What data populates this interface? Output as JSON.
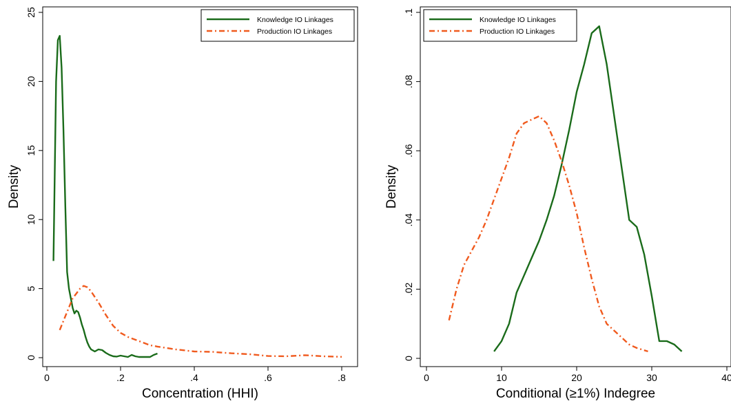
{
  "chart_data": [
    {
      "type": "line",
      "title": "",
      "xlabel": "Concentration (HHI)",
      "ylabel": "Density",
      "xlim": [
        0,
        0.82
      ],
      "ylim": [
        0,
        25
      ],
      "xticks": [
        0,
        0.2,
        0.4,
        0.6,
        0.8
      ],
      "xtick_labels": [
        "0",
        ".2",
        ".4",
        ".6",
        ".8"
      ],
      "yticks": [
        0,
        5,
        10,
        15,
        20,
        25
      ],
      "ytick_labels": [
        "0",
        "5",
        "10",
        "15",
        "20",
        "25"
      ],
      "legend_position": "top-right",
      "grid": false,
      "series": [
        {
          "name": "Knowledge IO Linkages",
          "color": "#1a6b1a",
          "dash": "solid",
          "x": [
            0.018,
            0.025,
            0.03,
            0.035,
            0.04,
            0.045,
            0.05,
            0.055,
            0.06,
            0.065,
            0.07,
            0.075,
            0.08,
            0.085,
            0.09,
            0.095,
            0.1,
            0.105,
            0.11,
            0.115,
            0.12,
            0.13,
            0.14,
            0.15,
            0.16,
            0.17,
            0.18,
            0.19,
            0.2,
            0.21,
            0.22,
            0.23,
            0.24,
            0.25,
            0.26,
            0.27,
            0.28,
            0.29,
            0.3
          ],
          "y": [
            7.0,
            20.0,
            23.0,
            23.3,
            21.0,
            16.5,
            11.0,
            6.2,
            5.0,
            4.3,
            3.6,
            3.2,
            3.4,
            3.3,
            2.9,
            2.4,
            2.0,
            1.5,
            1.1,
            0.8,
            0.6,
            0.45,
            0.6,
            0.55,
            0.35,
            0.2,
            0.1,
            0.08,
            0.15,
            0.1,
            0.05,
            0.2,
            0.1,
            0.05,
            0.05,
            0.05,
            0.05,
            0.2,
            0.3
          ]
        },
        {
          "name": "Production IO Linkages",
          "color": "#f05a1e",
          "dash": "dashdot",
          "x": [
            0.035,
            0.05,
            0.07,
            0.09,
            0.1,
            0.11,
            0.12,
            0.14,
            0.16,
            0.18,
            0.2,
            0.22,
            0.25,
            0.28,
            0.3,
            0.35,
            0.4,
            0.45,
            0.5,
            0.55,
            0.6,
            0.65,
            0.7,
            0.75,
            0.8
          ],
          "y": [
            2.0,
            3.0,
            4.3,
            5.0,
            5.2,
            5.1,
            4.8,
            4.0,
            3.1,
            2.3,
            1.8,
            1.5,
            1.2,
            0.9,
            0.8,
            0.6,
            0.45,
            0.42,
            0.32,
            0.25,
            0.12,
            0.1,
            0.18,
            0.1,
            0.06
          ]
        }
      ]
    },
    {
      "type": "line",
      "title": "",
      "xlabel": "Conditional (≥1%) Indegree",
      "ylabel": "Density",
      "xlim": [
        0,
        40
      ],
      "ylim": [
        0,
        0.1
      ],
      "xticks": [
        0,
        10,
        20,
        30,
        40
      ],
      "xtick_labels": [
        "0",
        "10",
        "20",
        "30",
        "40"
      ],
      "yticks": [
        0,
        0.02,
        0.04,
        0.06,
        0.08,
        0.1
      ],
      "ytick_labels": [
        "0",
        ".02",
        ".04",
        ".06",
        ".08",
        ".1"
      ],
      "legend_position": "top-left",
      "grid": false,
      "series": [
        {
          "name": "Knowledge IO Linkages",
          "color": "#1a6b1a",
          "dash": "solid",
          "x": [
            9,
            10,
            11,
            12,
            13,
            14,
            15,
            16,
            17,
            18,
            19,
            20,
            21,
            22,
            22.5,
            23,
            24,
            25,
            26,
            27,
            28,
            29,
            30,
            31,
            32,
            33,
            34
          ],
          "y": [
            0.002,
            0.005,
            0.01,
            0.019,
            0.024,
            0.029,
            0.034,
            0.04,
            0.047,
            0.056,
            0.066,
            0.077,
            0.085,
            0.094,
            0.095,
            0.096,
            0.085,
            0.07,
            0.055,
            0.04,
            0.038,
            0.03,
            0.018,
            0.005,
            0.005,
            0.004,
            0.002
          ]
        },
        {
          "name": "Production IO Linkages",
          "color": "#f05a1e",
          "dash": "dashdot",
          "x": [
            3,
            4,
            5,
            6,
            7,
            8,
            9,
            10,
            11,
            12,
            13,
            14,
            15,
            16,
            17,
            18,
            19,
            20,
            21,
            22,
            23,
            24,
            25,
            26,
            27,
            28,
            29.5
          ],
          "y": [
            0.011,
            0.02,
            0.027,
            0.031,
            0.035,
            0.04,
            0.046,
            0.052,
            0.058,
            0.065,
            0.068,
            0.069,
            0.07,
            0.068,
            0.063,
            0.057,
            0.05,
            0.042,
            0.032,
            0.023,
            0.015,
            0.01,
            0.008,
            0.006,
            0.004,
            0.003,
            0.002
          ]
        }
      ]
    }
  ]
}
